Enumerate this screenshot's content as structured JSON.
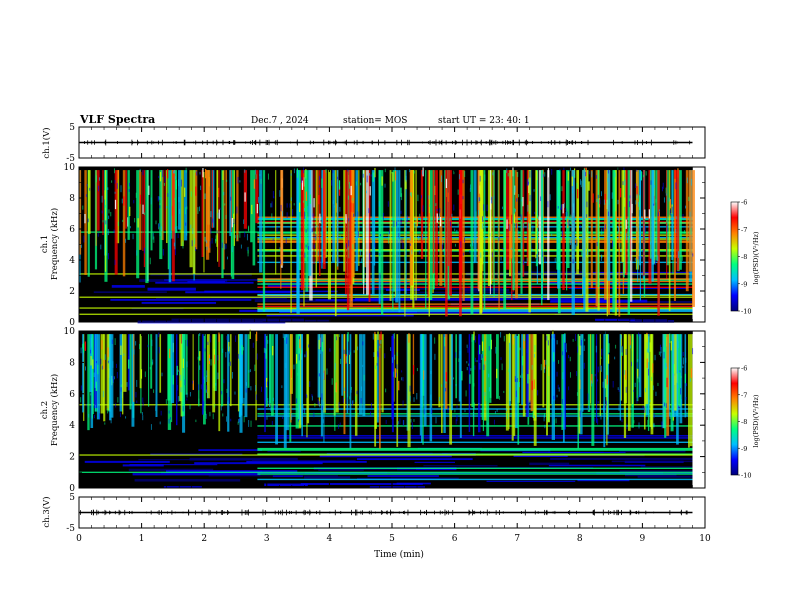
{
  "header": {
    "title": "VLF Spectra",
    "date": "Dec.7 , 2024",
    "station": "station= MOS",
    "start": "start UT = 23: 40: 1"
  },
  "chart_data": {
    "type": "heatmap",
    "x": {
      "label": "Time (min)",
      "range": [
        0,
        10
      ],
      "ticks": [
        "0",
        "1",
        "2",
        "3",
        "4",
        "5",
        "6",
        "7",
        "8",
        "9",
        "10"
      ]
    },
    "panels": [
      {
        "id": "ch1_wave",
        "ylabel": "ch.1(V)",
        "ylim": [
          -5,
          5
        ],
        "ticks": [
          "5",
          "-5"
        ],
        "trace_level": 0,
        "data_end_min": 9.8
      },
      {
        "id": "ch1_spec",
        "ylabel_top": "ch.1",
        "ylabel": "Frequency (kHz)",
        "ylim": [
          0,
          10
        ],
        "ticks": [
          "0",
          "2",
          "4",
          "6",
          "8",
          "10"
        ],
        "data_end_min": 9.8,
        "transition_min": 2.85,
        "colorbar": {
          "label": "log(PSD)(V²/Hz)",
          "range": [
            -10,
            -6
          ],
          "ticks": [
            "-6",
            "-7",
            "-8",
            "-9",
            "-10"
          ]
        }
      },
      {
        "id": "ch2_spec",
        "ylabel_top": "ch.2",
        "ylabel": "Frequency (kHz)",
        "ylim": [
          0,
          10
        ],
        "ticks": [
          "0",
          "2",
          "4",
          "6",
          "8",
          "10"
        ],
        "data_end_min": 9.8,
        "transition_min": 2.85,
        "colorbar": {
          "label": "log(PSD)(V²/Hz)",
          "range": [
            -10,
            -6
          ],
          "ticks": [
            "-6",
            "-7",
            "-8",
            "-9",
            "-10"
          ]
        }
      },
      {
        "id": "ch3_wave",
        "ylabel": "ch.3(V)",
        "ylim": [
          -5,
          5
        ],
        "ticks": [
          "5",
          "-5"
        ],
        "trace_level": 0,
        "data_end_min": 9.8
      }
    ],
    "colormap": [
      "#000000",
      "#00007a",
      "#0000ff",
      "#00bfff",
      "#00ff80",
      "#c8ff00",
      "#ff8000",
      "#ff0000",
      "#ffffff"
    ]
  }
}
